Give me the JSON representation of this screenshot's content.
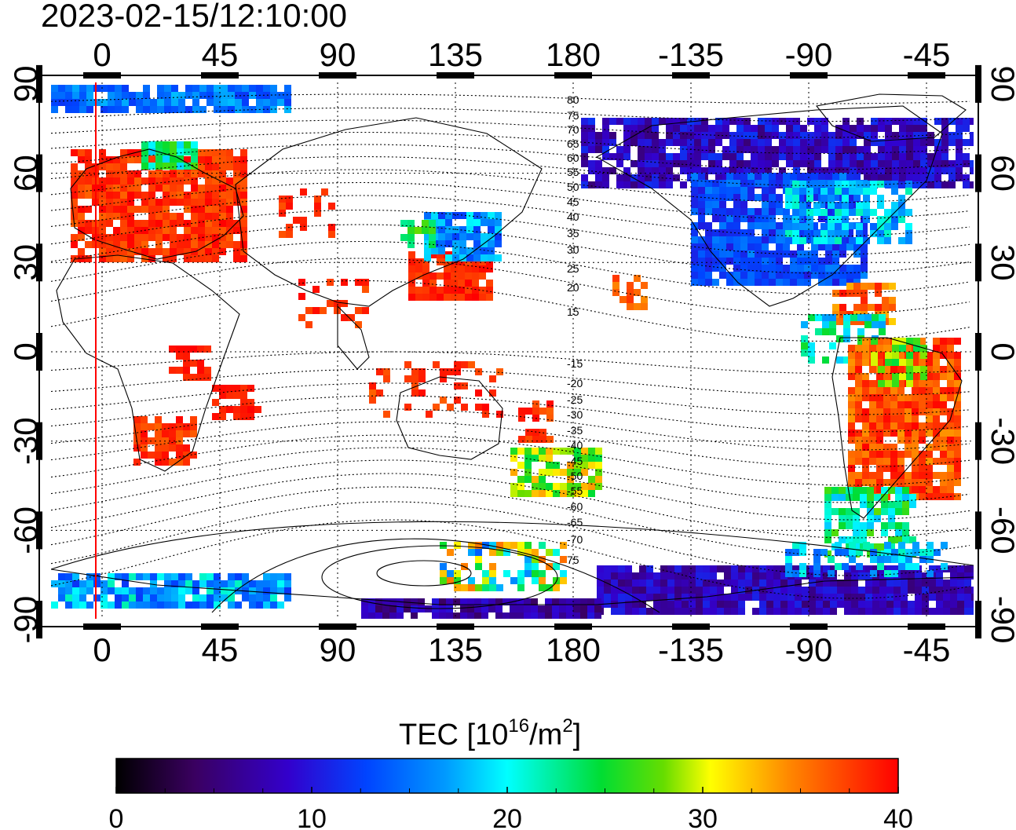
{
  "title": "2023-02-15/12:10:00",
  "colorbar": {
    "label_main": "TEC  [10",
    "label_sup1": "16",
    "label_mid": "/m",
    "label_sup2": "2",
    "label_end": "]",
    "ticks": [
      "0",
      "10",
      "20",
      "30",
      "40"
    ],
    "min": 0,
    "max": 40
  },
  "axes": {
    "lon_ticks": [
      "0",
      "45",
      "90",
      "135",
      "180",
      "-135",
      "-90",
      "-45"
    ],
    "lat_ticks": [
      "90",
      "60",
      "30",
      "0",
      "-30",
      "-60",
      "-90"
    ]
  },
  "contours": {
    "north_labels": [
      "80",
      "75",
      "70",
      "65",
      "60",
      "55",
      "50",
      "45",
      "40",
      "35",
      "30",
      "25",
      "20",
      "15"
    ],
    "south_labels": [
      "-15",
      "-20",
      "-25",
      "-30",
      "-35",
      "-40",
      "-45",
      "-50",
      "-55",
      "-60",
      "-65",
      "-70",
      "75"
    ]
  }
}
